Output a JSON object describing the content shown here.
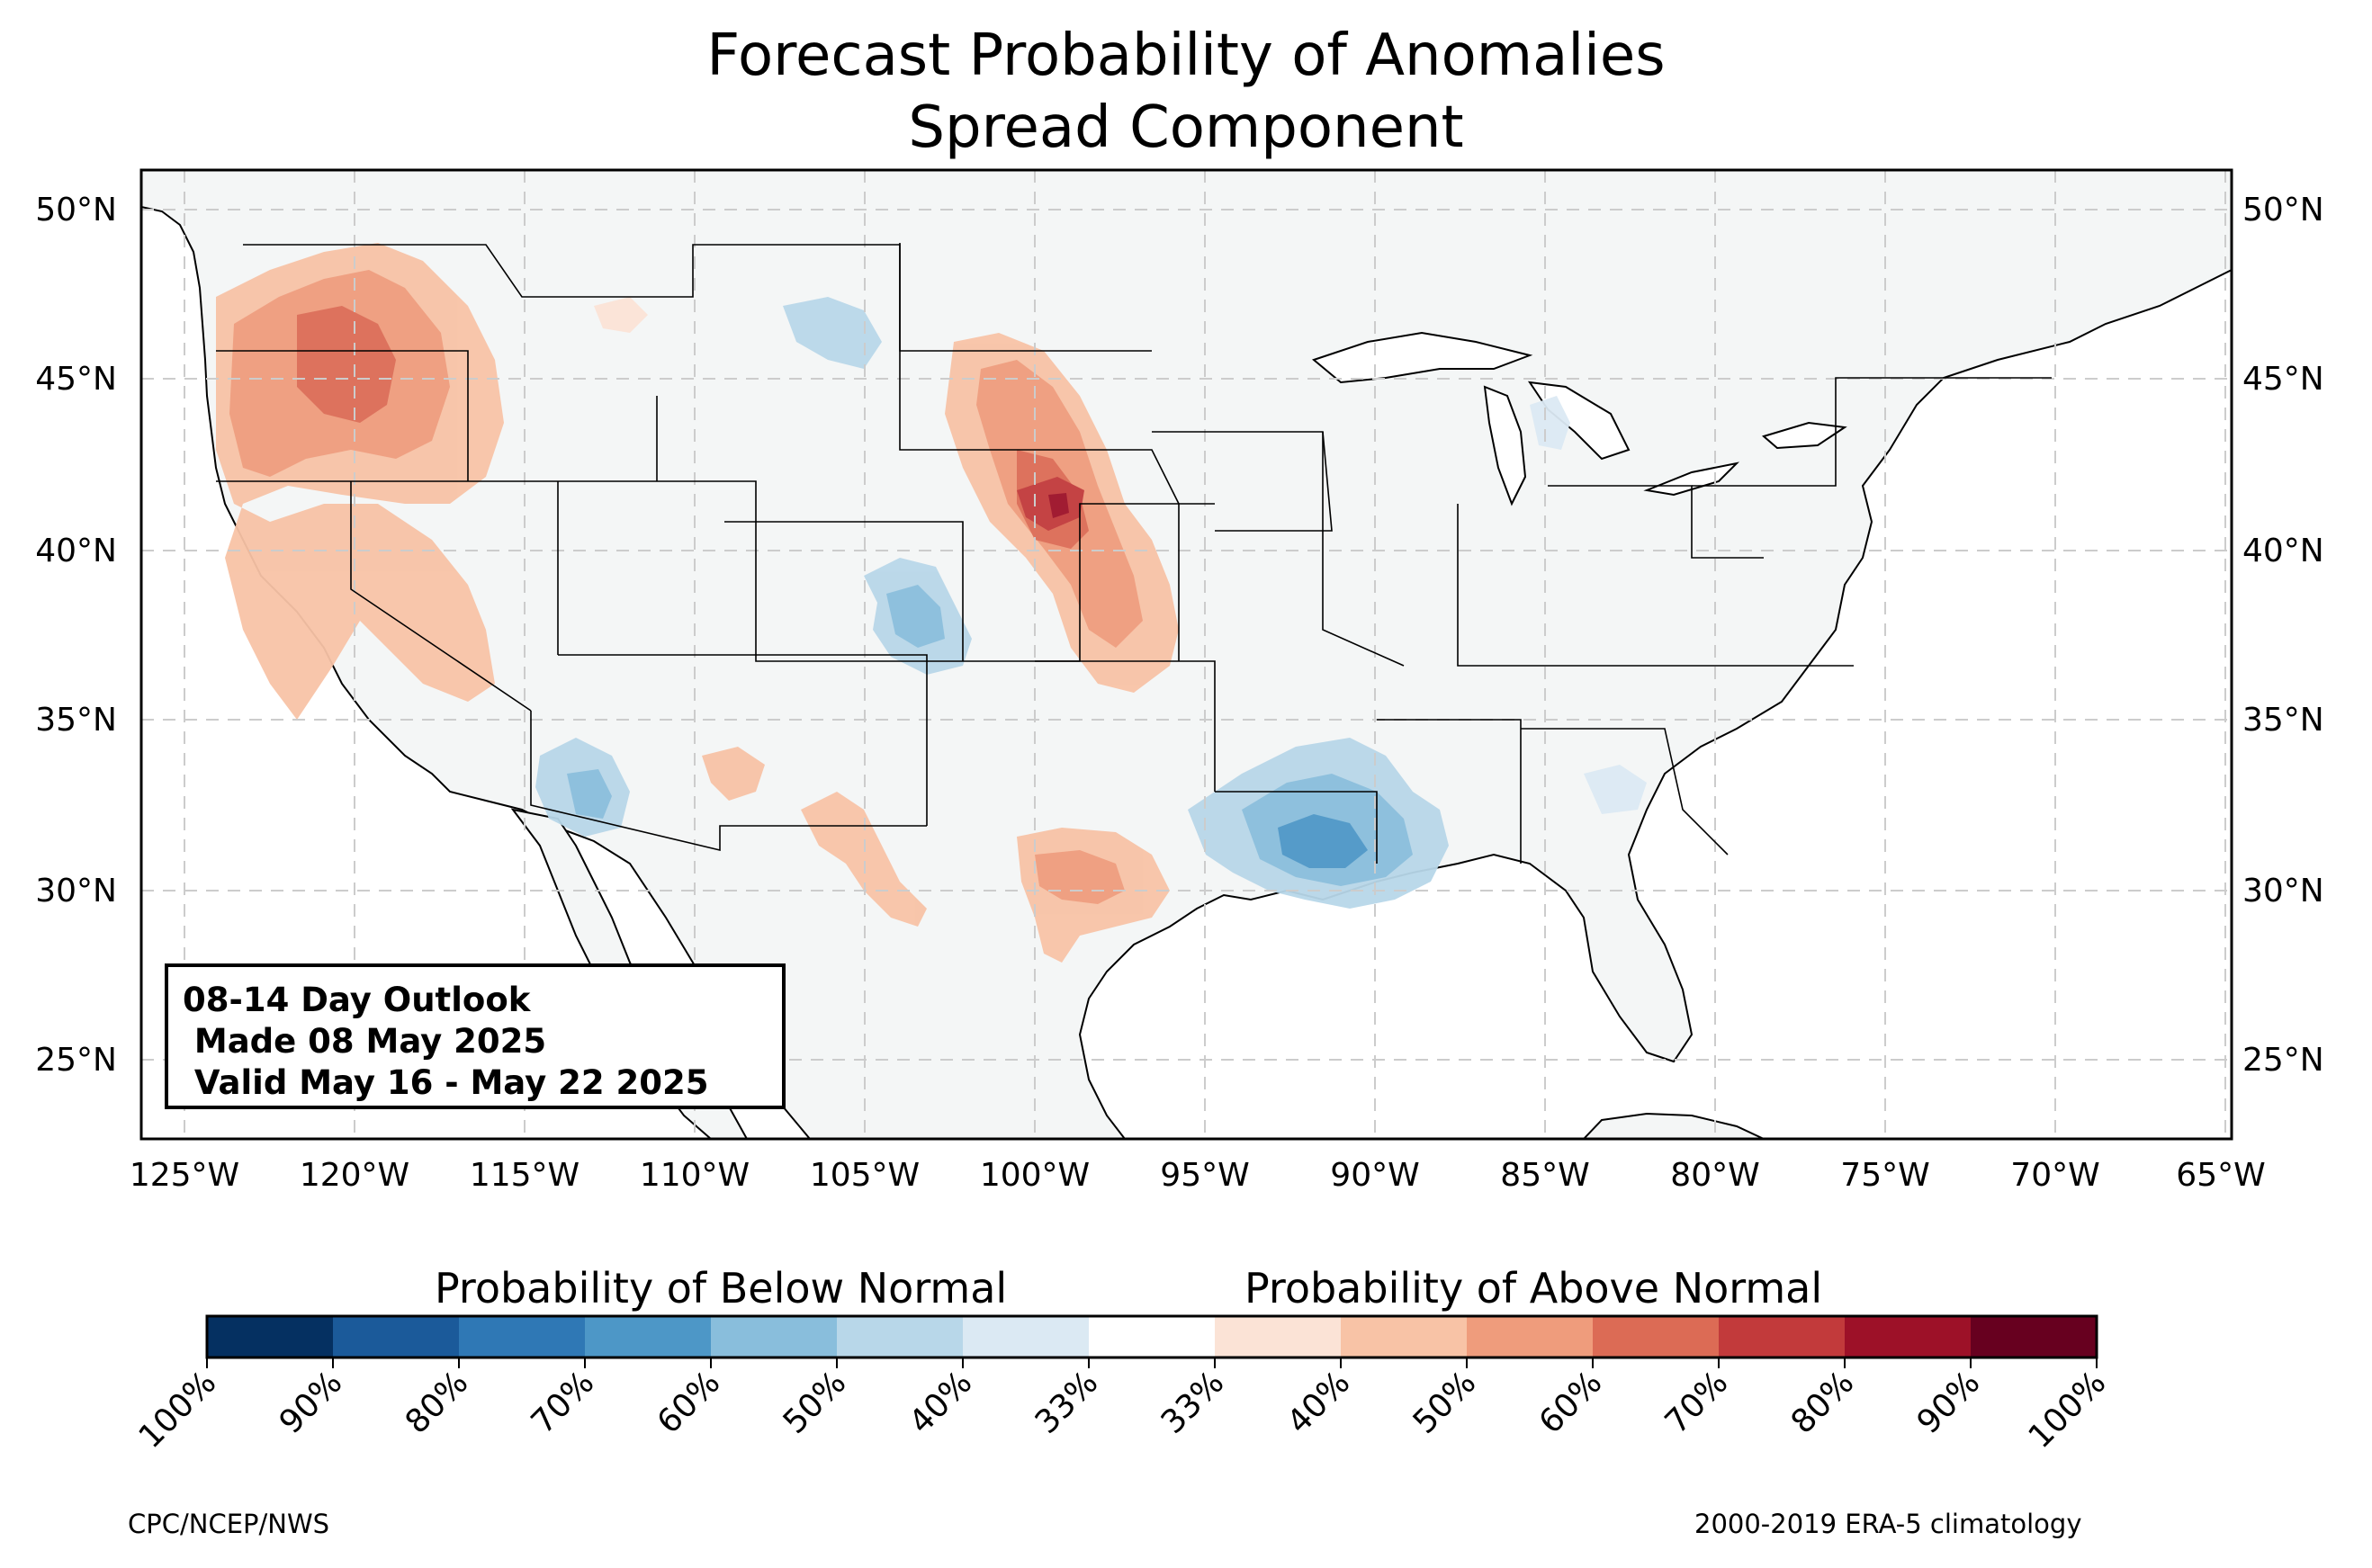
{
  "title": {
    "line1": "Forecast Probability of Anomalies",
    "line2": "Spread Component"
  },
  "map": {
    "lat_labels": [
      "50°N",
      "45°N",
      "40°N",
      "35°N",
      "30°N",
      "25°N"
    ],
    "lon_labels": [
      "125°W",
      "120°W",
      "115°W",
      "110°W",
      "105°W",
      "100°W",
      "95°W",
      "90°W",
      "85°W",
      "80°W",
      "75°W",
      "70°W",
      "65°W"
    ],
    "colors": {
      "land": "#f4f6f6",
      "ocean": "#ffffff",
      "gridline": "#cccccc"
    }
  },
  "outlook_box": {
    "line1": "08-14 Day Outlook",
    "line2": " Made 08 May 2025",
    "line3": " Valid May 16 - May 22 2025"
  },
  "colorbar": {
    "below_heading": "Probability of Below Normal",
    "above_heading": "Probability of Above Normal",
    "bins": [
      {
        "range": "100%-90%",
        "color": "#053061"
      },
      {
        "range": "90%-80%",
        "color": "#1b5a9a"
      },
      {
        "range": "80%-70%",
        "color": "#2f78b5"
      },
      {
        "range": "70%-60%",
        "color": "#4d97c7"
      },
      {
        "range": "60%-50%",
        "color": "#89bedc"
      },
      {
        "range": "50%-40%",
        "color": "#b8d7e9"
      },
      {
        "range": "40%-33%",
        "color": "#dbe9f3"
      },
      {
        "range": "33%-33%",
        "color": "#ffffff"
      },
      {
        "range": "33%-40%",
        "color": "#fbe3d6"
      },
      {
        "range": "40%-50%",
        "color": "#f8c3a6"
      },
      {
        "range": "50%-60%",
        "color": "#ef9c7c"
      },
      {
        "range": "60%-70%",
        "color": "#dc6b55"
      },
      {
        "range": "70%-80%",
        "color": "#c23a3b"
      },
      {
        "range": "80%-90%",
        "color": "#9d1128"
      },
      {
        "range": "90%-100%",
        "color": "#67001f"
      }
    ],
    "tick_labels": [
      "100%",
      "90%",
      "80%",
      "70%",
      "60%",
      "50%",
      "40%",
      "33%",
      "33%",
      "40%",
      "50%",
      "60%",
      "70%",
      "80%",
      "90%",
      "100%"
    ]
  },
  "footer": {
    "left": "CPC/NCEP/NWS",
    "right": "2000-2019 ERA-5 climatology"
  }
}
